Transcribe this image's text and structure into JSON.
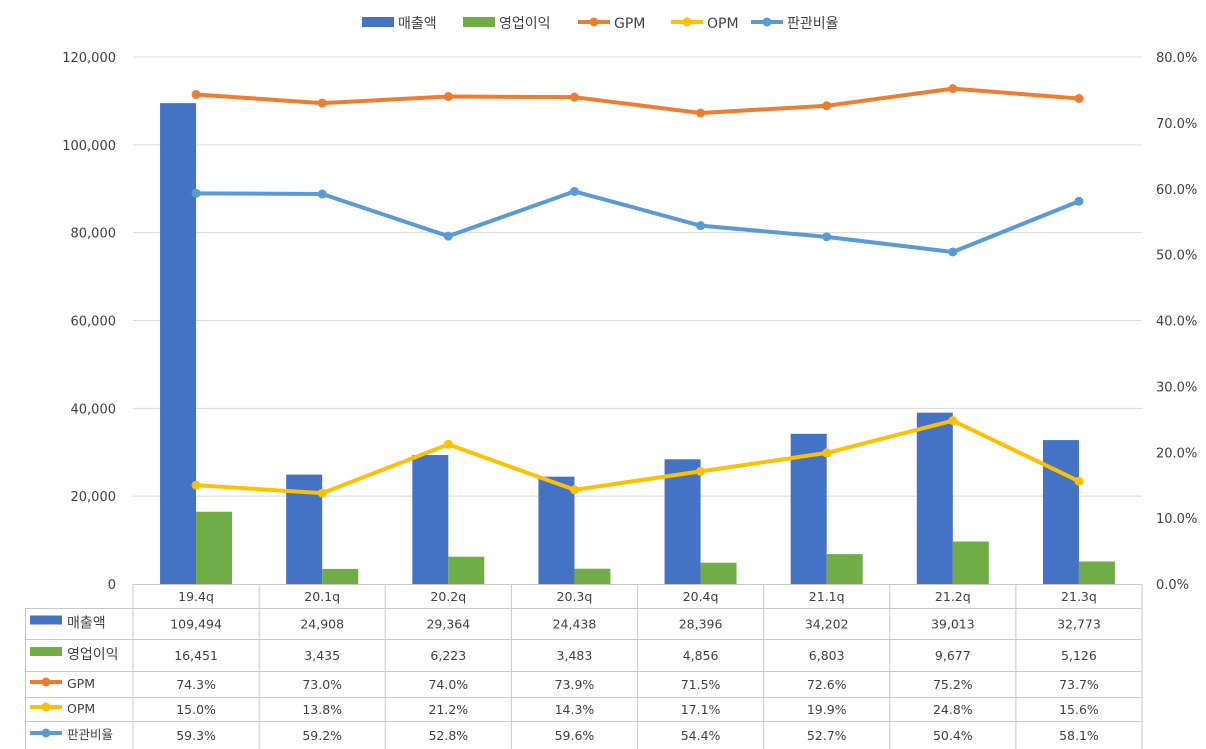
{
  "chart_data": {
    "type": "bar",
    "categories": [
      "19.4q",
      "20.1q",
      "20.2q",
      "20.3q",
      "20.4q",
      "21.1q",
      "21.2q",
      "21.3q"
    ],
    "left_axis": {
      "range": [
        0,
        120000
      ],
      "ticks": [
        "0",
        "20,000",
        "40,000",
        "60,000",
        "80,000",
        "100,000",
        "120,000"
      ]
    },
    "right_axis": {
      "range": [
        0,
        80
      ],
      "ticks": [
        "0.0%",
        "10.0%",
        "20.0%",
        "30.0%",
        "40.0%",
        "50.0%",
        "60.0%",
        "70.0%",
        "80.0%"
      ]
    },
    "grid": true,
    "legend_position": "top",
    "series": [
      {
        "name": "매출액",
        "kind": "bar",
        "axis": "left",
        "color": "#4472C4",
        "values": [
          109494,
          24908,
          29364,
          24438,
          28396,
          34202,
          39013,
          32773
        ],
        "labels": [
          "109,494",
          "24,908",
          "29,364",
          "24,438",
          "28,396",
          "34,202",
          "39,013",
          "32,773"
        ]
      },
      {
        "name": "영업이익",
        "kind": "bar",
        "axis": "left",
        "color": "#70AD47",
        "values": [
          16451,
          3435,
          6223,
          3483,
          4856,
          6803,
          9677,
          5126
        ],
        "labels": [
          "16,451",
          "3,435",
          "6,223",
          "3,483",
          "4,856",
          "6,803",
          "9,677",
          "5,126"
        ]
      },
      {
        "name": "GPM",
        "kind": "line",
        "axis": "right",
        "color": "#ED7D31",
        "values": [
          74.3,
          73.0,
          74.0,
          73.9,
          71.5,
          72.6,
          75.2,
          73.7
        ],
        "labels": [
          "74.3%",
          "73.0%",
          "74.0%",
          "73.9%",
          "71.5%",
          "72.6%",
          "75.2%",
          "73.7%"
        ]
      },
      {
        "name": "OPM",
        "kind": "line",
        "axis": "right",
        "color": "#FFC000",
        "values": [
          15.0,
          13.8,
          21.2,
          14.3,
          17.1,
          19.9,
          24.8,
          15.6
        ],
        "labels": [
          "15.0%",
          "13.8%",
          "21.2%",
          "14.3%",
          "17.1%",
          "19.9%",
          "24.8%",
          "15.6%"
        ]
      },
      {
        "name": "판관비율",
        "kind": "line",
        "axis": "right",
        "color": "#5B9BD5",
        "values": [
          59.3,
          59.2,
          52.8,
          59.6,
          54.4,
          52.7,
          50.4,
          58.1
        ],
        "labels": [
          "59.3%",
          "59.2%",
          "52.8%",
          "59.6%",
          "54.4%",
          "52.7%",
          "50.4%",
          "58.1%"
        ]
      }
    ]
  }
}
